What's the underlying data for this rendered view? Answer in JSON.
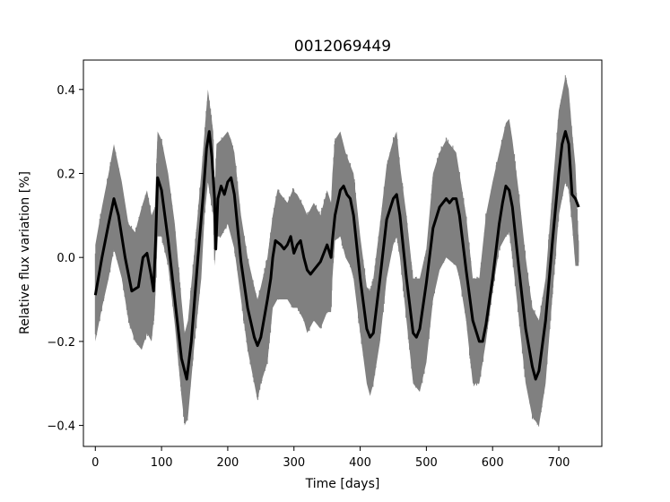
{
  "chart_data": {
    "type": "line",
    "title": "0012069449",
    "xlabel": "Time [days]",
    "ylabel": "Relative flux variation [%]",
    "xlim": [
      -18,
      765
    ],
    "ylim": [
      -0.45,
      0.47
    ],
    "xticks": [
      0,
      100,
      200,
      300,
      400,
      500,
      600,
      700
    ],
    "xtick_labels": [
      "0",
      "100",
      "200",
      "300",
      "400",
      "500",
      "600",
      "700"
    ],
    "yticks": [
      -0.4,
      -0.2,
      0.0,
      0.2,
      0.4
    ],
    "ytick_labels": [
      "−0.4",
      "−0.2",
      "0.0",
      "0.2",
      "0.4"
    ],
    "grid": false,
    "legend": "none",
    "series": [
      {
        "role": "raw",
        "color": "#808080",
        "x": [
          0,
          10,
          20,
          28,
          40,
          50,
          60,
          70,
          78,
          85,
          90,
          94,
          100,
          110,
          120,
          130,
          135,
          140,
          150,
          160,
          165,
          170,
          178,
          180,
          183,
          190,
          200,
          205,
          210,
          220,
          230,
          240,
          245,
          250,
          260,
          268,
          275,
          280,
          290,
          298,
          305,
          315,
          320,
          330,
          340,
          350,
          356,
          358,
          362,
          370,
          378,
          385,
          390,
          400,
          410,
          415,
          420,
          430,
          440,
          450,
          455,
          460,
          470,
          480,
          490,
          500,
          510,
          520,
          530,
          545,
          550,
          560,
          570,
          580,
          590,
          600,
          610,
          620,
          625,
          630,
          640,
          650,
          660,
          670,
          680,
          690,
          700,
          710,
          715,
          720,
          725,
          730
        ],
        "upper": [
          0.03,
          0.12,
          0.2,
          0.27,
          0.18,
          0.08,
          0.06,
          0.12,
          0.16,
          0.1,
          0.12,
          0.3,
          0.28,
          0.2,
          0.08,
          -0.1,
          -0.18,
          -0.15,
          0.02,
          0.2,
          0.3,
          0.4,
          0.3,
          0.15,
          0.27,
          0.28,
          0.3,
          0.28,
          0.25,
          0.1,
          0.0,
          -0.07,
          -0.1,
          -0.07,
          0.0,
          0.1,
          0.16,
          0.15,
          0.13,
          0.16,
          0.15,
          0.12,
          0.1,
          0.13,
          0.1,
          0.16,
          0.13,
          0.2,
          0.28,
          0.3,
          0.25,
          0.22,
          0.2,
          0.05,
          -0.07,
          -0.08,
          -0.05,
          0.08,
          0.22,
          0.28,
          0.3,
          0.22,
          0.1,
          -0.05,
          -0.05,
          0.02,
          0.2,
          0.25,
          0.28,
          0.25,
          0.2,
          0.1,
          -0.05,
          -0.05,
          0.1,
          0.18,
          0.25,
          0.32,
          0.33,
          0.28,
          0.15,
          0.0,
          -0.12,
          -0.15,
          -0.05,
          0.15,
          0.35,
          0.43,
          0.4,
          0.3,
          0.22,
          0.03
        ],
        "lower": [
          -0.2,
          -0.12,
          -0.05,
          0.02,
          -0.05,
          -0.15,
          -0.2,
          -0.22,
          -0.18,
          -0.2,
          -0.12,
          0.05,
          0.05,
          -0.02,
          -0.16,
          -0.33,
          -0.4,
          -0.38,
          -0.2,
          -0.05,
          0.1,
          0.18,
          0.1,
          -0.02,
          0.05,
          0.05,
          0.08,
          0.05,
          0.02,
          -0.1,
          -0.22,
          -0.3,
          -0.34,
          -0.3,
          -0.25,
          -0.12,
          -0.1,
          -0.1,
          -0.1,
          -0.12,
          -0.12,
          -0.15,
          -0.18,
          -0.15,
          -0.17,
          -0.13,
          -0.13,
          -0.05,
          0.04,
          0.05,
          0.0,
          -0.02,
          -0.05,
          -0.18,
          -0.3,
          -0.33,
          -0.3,
          -0.2,
          -0.05,
          0.03,
          0.05,
          0.0,
          -0.15,
          -0.3,
          -0.32,
          -0.25,
          -0.1,
          -0.03,
          0.0,
          -0.02,
          -0.05,
          -0.15,
          -0.3,
          -0.3,
          -0.2,
          -0.08,
          0.02,
          0.05,
          0.06,
          0.0,
          -0.15,
          -0.3,
          -0.38,
          -0.4,
          -0.3,
          -0.1,
          0.1,
          0.18,
          0.16,
          0.08,
          -0.02,
          -0.02
        ]
      },
      {
        "role": "smoothed",
        "color": "#000000",
        "x": [
          0,
          10,
          20,
          28,
          35,
          45,
          55,
          65,
          72,
          78,
          84,
          88,
          91,
          94,
          100,
          105,
          110,
          120,
          130,
          138,
          145,
          155,
          163,
          168,
          172,
          176,
          180,
          182,
          185,
          190,
          195,
          200,
          205,
          210,
          220,
          230,
          240,
          245,
          250,
          260,
          265,
          268,
          272,
          280,
          285,
          290,
          295,
          300,
          305,
          310,
          315,
          320,
          325,
          330,
          340,
          345,
          350,
          356,
          358,
          362,
          370,
          375,
          380,
          385,
          390,
          400,
          410,
          415,
          420,
          430,
          440,
          450,
          455,
          460,
          470,
          480,
          485,
          490,
          500,
          510,
          520,
          530,
          535,
          540,
          545,
          550,
          560,
          570,
          580,
          585,
          590,
          600,
          610,
          615,
          620,
          625,
          630,
          640,
          650,
          660,
          665,
          670,
          680,
          690,
          700,
          705,
          710,
          715,
          720,
          725,
          730
        ],
        "values": [
          -0.09,
          0.0,
          0.08,
          0.14,
          0.1,
          0.0,
          -0.08,
          -0.07,
          0.0,
          0.01,
          -0.04,
          -0.08,
          0.04,
          0.19,
          0.16,
          0.1,
          0.04,
          -0.1,
          -0.24,
          -0.29,
          -0.2,
          0.0,
          0.15,
          0.26,
          0.3,
          0.24,
          0.14,
          0.02,
          0.14,
          0.17,
          0.15,
          0.18,
          0.19,
          0.15,
          -0.01,
          -0.12,
          -0.19,
          -0.21,
          -0.19,
          -0.1,
          -0.05,
          0.0,
          0.04,
          0.03,
          0.02,
          0.03,
          0.05,
          0.01,
          0.03,
          0.04,
          0.0,
          -0.03,
          -0.04,
          -0.03,
          -0.01,
          0.01,
          0.03,
          0.0,
          0.04,
          0.1,
          0.16,
          0.17,
          0.15,
          0.14,
          0.1,
          -0.05,
          -0.17,
          -0.19,
          -0.18,
          -0.05,
          0.09,
          0.14,
          0.15,
          0.1,
          -0.05,
          -0.18,
          -0.19,
          -0.17,
          -0.06,
          0.07,
          0.12,
          0.14,
          0.13,
          0.14,
          0.14,
          0.1,
          -0.03,
          -0.15,
          -0.2,
          -0.2,
          -0.16,
          -0.05,
          0.08,
          0.13,
          0.17,
          0.16,
          0.12,
          -0.03,
          -0.17,
          -0.26,
          -0.29,
          -0.27,
          -0.15,
          0.03,
          0.2,
          0.27,
          0.3,
          0.27,
          0.15,
          0.14,
          0.12
        ]
      }
    ]
  }
}
